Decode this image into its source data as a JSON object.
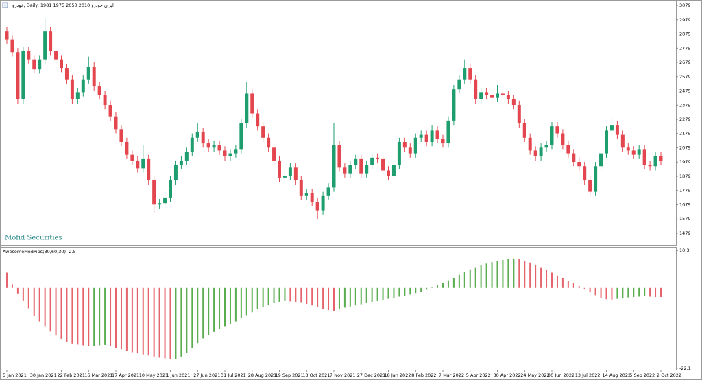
{
  "chart_data": [
    {
      "type": "candlestick",
      "title": "خودرو, Daily:  1981 1975 2050 2010  ایران خودرو",
      "watermark": "Mofid Securities",
      "up_color": "#1e9e6e",
      "down_color": "#e3464e",
      "ylim": [
        1397,
        3108
      ],
      "yticks": [
        3079,
        2979,
        2879,
        2779,
        2679,
        2579,
        2479,
        2379,
        2279,
        2179,
        2079,
        1979,
        1879,
        1779,
        1679,
        1579,
        1479
      ],
      "open": [
        2900,
        2840,
        2750,
        2420,
        2760,
        2700,
        2630,
        2700,
        2900,
        2760,
        2700,
        2640,
        2560,
        2420,
        2470,
        2560,
        2650,
        2510,
        2450,
        2380,
        2300,
        2210,
        2120,
        2030,
        1990,
        1935,
        2000,
        1850,
        1680,
        1690,
        1730,
        1850,
        1960,
        1990,
        2050,
        2150,
        2190,
        2110,
        2080,
        2100,
        2060,
        2020,
        2040,
        2070,
        2250,
        2460,
        2320,
        2230,
        2150,
        2080,
        1990,
        1870,
        1880,
        1940,
        1850,
        1740,
        1760,
        1700,
        1640,
        1740,
        1800,
        2100,
        1940,
        1900,
        1960,
        2000,
        1900,
        1960,
        2010,
        2000,
        1920,
        1880,
        1960,
        2120,
        2080,
        2040,
        2150,
        2170,
        2120,
        2200,
        2140,
        2110,
        2270,
        2490,
        2560,
        2640,
        2560,
        2420,
        2470,
        2450,
        2430,
        2460,
        2450,
        2420,
        2380,
        2250,
        2150,
        2060,
        2020,
        2080,
        2100,
        2230,
        2180,
        2100,
        2040,
        1980,
        1950,
        1850,
        1770,
        1950,
        2040,
        2200,
        2240,
        2170,
        2080,
        2060,
        2030,
        2070,
        1960,
        1950,
        2020
      ],
      "high": [
        2930,
        2870,
        2780,
        2790,
        2790,
        2730,
        2730,
        2990,
        2930,
        2790,
        2730,
        2670,
        2590,
        2500,
        2590,
        2720,
        2680,
        2540,
        2480,
        2410,
        2330,
        2240,
        2150,
        2060,
        2020,
        2100,
        2030,
        1880,
        1720,
        1760,
        1880,
        1990,
        2020,
        2080,
        2180,
        2250,
        2220,
        2140,
        2130,
        2130,
        2090,
        2070,
        2100,
        2280,
        2540,
        2490,
        2350,
        2260,
        2180,
        2110,
        2020,
        1910,
        1970,
        1970,
        1880,
        1790,
        1790,
        1730,
        1770,
        1830,
        2250,
        2130,
        1970,
        1990,
        2030,
        2030,
        1990,
        2040,
        2040,
        2030,
        1950,
        1990,
        2150,
        2150,
        2110,
        2180,
        2200,
        2200,
        2240,
        2230,
        2170,
        2300,
        2520,
        2590,
        2700,
        2670,
        2590,
        2500,
        2500,
        2480,
        2520,
        2490,
        2480,
        2450,
        2410,
        2280,
        2180,
        2090,
        2110,
        2130,
        2260,
        2260,
        2210,
        2130,
        2070,
        2010,
        1980,
        1880,
        1980,
        2070,
        2230,
        2290,
        2270,
        2200,
        2110,
        2090,
        2100,
        2100,
        1990,
        2050,
        2050
      ],
      "low": [
        2810,
        2720,
        2390,
        2390,
        2670,
        2600,
        2600,
        2670,
        2730,
        2670,
        2610,
        2530,
        2390,
        2390,
        2440,
        2530,
        2480,
        2420,
        2350,
        2270,
        2180,
        2090,
        2000,
        1960,
        1905,
        1905,
        1820,
        1620,
        1650,
        1660,
        1700,
        1820,
        1930,
        1960,
        2020,
        2120,
        2080,
        2050,
        2050,
        2030,
        1990,
        1990,
        2010,
        2040,
        2220,
        2290,
        2200,
        2120,
        2050,
        1960,
        1840,
        1840,
        1850,
        1820,
        1710,
        1710,
        1670,
        1575,
        1610,
        1710,
        1770,
        1910,
        1870,
        1870,
        1930,
        1870,
        1870,
        1930,
        1970,
        1890,
        1850,
        1850,
        1930,
        2050,
        2010,
        2010,
        2120,
        2090,
        2090,
        2110,
        2080,
        2080,
        2240,
        2460,
        2530,
        2530,
        2390,
        2390,
        2420,
        2400,
        2400,
        2420,
        2390,
        2350,
        2220,
        2120,
        2030,
        1990,
        1990,
        2050,
        2070,
        2150,
        2070,
        2010,
        1950,
        1920,
        1820,
        1740,
        1740,
        1920,
        2010,
        2170,
        2140,
        2050,
        2030,
        2000,
        2000,
        1930,
        1920,
        1920,
        1960
      ],
      "close": [
        2840,
        2750,
        2420,
        2760,
        2700,
        2630,
        2700,
        2900,
        2760,
        2700,
        2640,
        2560,
        2420,
        2470,
        2560,
        2650,
        2510,
        2450,
        2380,
        2300,
        2210,
        2120,
        2030,
        1990,
        1935,
        2000,
        1850,
        1680,
        1690,
        1730,
        1850,
        1960,
        1990,
        2050,
        2150,
        2190,
        2110,
        2080,
        2100,
        2060,
        2020,
        2040,
        2070,
        2250,
        2460,
        2320,
        2230,
        2150,
        2080,
        1990,
        1870,
        1880,
        1940,
        1850,
        1740,
        1760,
        1700,
        1640,
        1740,
        1800,
        2100,
        1940,
        1900,
        1960,
        2000,
        1900,
        1960,
        2010,
        2000,
        1920,
        1880,
        1960,
        2120,
        2080,
        2040,
        2150,
        2170,
        2120,
        2200,
        2140,
        2110,
        2270,
        2490,
        2560,
        2640,
        2560,
        2420,
        2470,
        2450,
        2430,
        2460,
        2450,
        2420,
        2380,
        2250,
        2150,
        2060,
        2020,
        2080,
        2100,
        2230,
        2180,
        2100,
        2040,
        1980,
        1950,
        1850,
        1770,
        1950,
        2040,
        2200,
        2240,
        2170,
        2080,
        2060,
        2030,
        2070,
        1960,
        1950,
        2020,
        1990
      ]
    },
    {
      "type": "bar",
      "label": "AwesomeModPips(30,60,30) -2.5",
      "up_color": "#5aad4e",
      "down_color": "#e5636b",
      "ylim": [
        -22.7,
        11.1
      ],
      "yticks": [
        10.3,
        -22.1
      ],
      "categories": [
        "5 Jan 2021",
        null,
        null,
        null,
        null,
        "30 Jan 2021",
        null,
        null,
        null,
        null,
        "22 Feb 2021",
        null,
        null,
        null,
        null,
        "16 Mar 2021",
        null,
        null,
        null,
        null,
        "17 Apr 2021",
        null,
        null,
        null,
        null,
        "10 May 2021",
        null,
        null,
        null,
        null,
        "1 Jun 2021",
        null,
        null,
        null,
        null,
        "27 Jun 2021",
        null,
        null,
        null,
        null,
        "31 Jul 2021",
        null,
        null,
        null,
        null,
        "28 Aug 2021",
        null,
        null,
        null,
        null,
        "19 Sep 2021",
        null,
        null,
        null,
        null,
        "13 Oct 2021",
        null,
        null,
        null,
        null,
        "7 Nov 2021",
        null,
        null,
        null,
        null,
        "27 Dec 2021",
        null,
        null,
        null,
        null,
        "18 Jan 2022",
        null,
        null,
        null,
        null,
        "8 Feb 2022",
        null,
        null,
        null,
        null,
        "7 Mar 2022",
        null,
        null,
        null,
        null,
        "5 Apr 2022",
        null,
        null,
        null,
        null,
        "30 Apr 2022",
        null,
        null,
        null,
        null,
        "24 May 2022",
        null,
        null,
        null,
        null,
        "20 Jun 2022",
        null,
        null,
        null,
        null,
        "13 Jul 2022",
        null,
        null,
        null,
        null,
        "14 Aug 2022",
        null,
        null,
        null,
        null,
        "5 Sep 2022",
        null,
        null,
        null,
        null,
        "2 Oct 2022"
      ],
      "values": [
        4.2,
        1.0,
        -1.5,
        -3.6,
        -5.6,
        -7.7,
        -9.2,
        -10.7,
        -12.0,
        -13.1,
        -14.0,
        -14.8,
        -15.3,
        -15.6,
        -15.8,
        -16.0,
        -15.9,
        -15.8,
        -15.7,
        -16.1,
        -16.5,
        -16.9,
        -17.3,
        -17.7,
        -18.0,
        -18.3,
        -18.6,
        -18.9,
        -19.2,
        -19.4,
        -19.6,
        -19.5,
        -18.9,
        -17.8,
        -16.6,
        -15.2,
        -13.9,
        -12.9,
        -12.1,
        -11.3,
        -10.7,
        -10.0,
        -9.2,
        -8.3,
        -7.5,
        -6.7,
        -5.9,
        -5.2,
        -4.7,
        -4.2,
        -3.8,
        -3.6,
        -3.7,
        -3.9,
        -4.1,
        -4.4,
        -4.8,
        -5.3,
        -5.8,
        -6.1,
        -6.3,
        -5.8,
        -5.4,
        -5.1,
        -4.8,
        -4.5,
        -4.2,
        -3.9,
        -3.6,
        -3.3,
        -3.0,
        -2.7,
        -2.4,
        -2.1,
        -1.8,
        -1.4,
        -1.0,
        -0.5,
        0.1,
        0.7,
        1.4,
        2.1,
        2.8,
        3.6,
        4.4,
        5.1,
        5.7,
        6.2,
        6.7,
        7.1,
        7.4,
        7.7,
        7.9,
        8.1,
        7.9,
        7.5,
        7.0,
        6.4,
        5.7,
        5.0,
        4.2,
        3.4,
        2.7,
        2.0,
        1.3,
        0.5,
        -0.4,
        -1.2,
        -2.0,
        -2.7,
        -3.1,
        -3.2,
        -3.0,
        -2.8,
        -2.6,
        -2.5,
        -2.4,
        -2.3,
        -2.4,
        -2.5,
        -2.5
      ]
    }
  ]
}
